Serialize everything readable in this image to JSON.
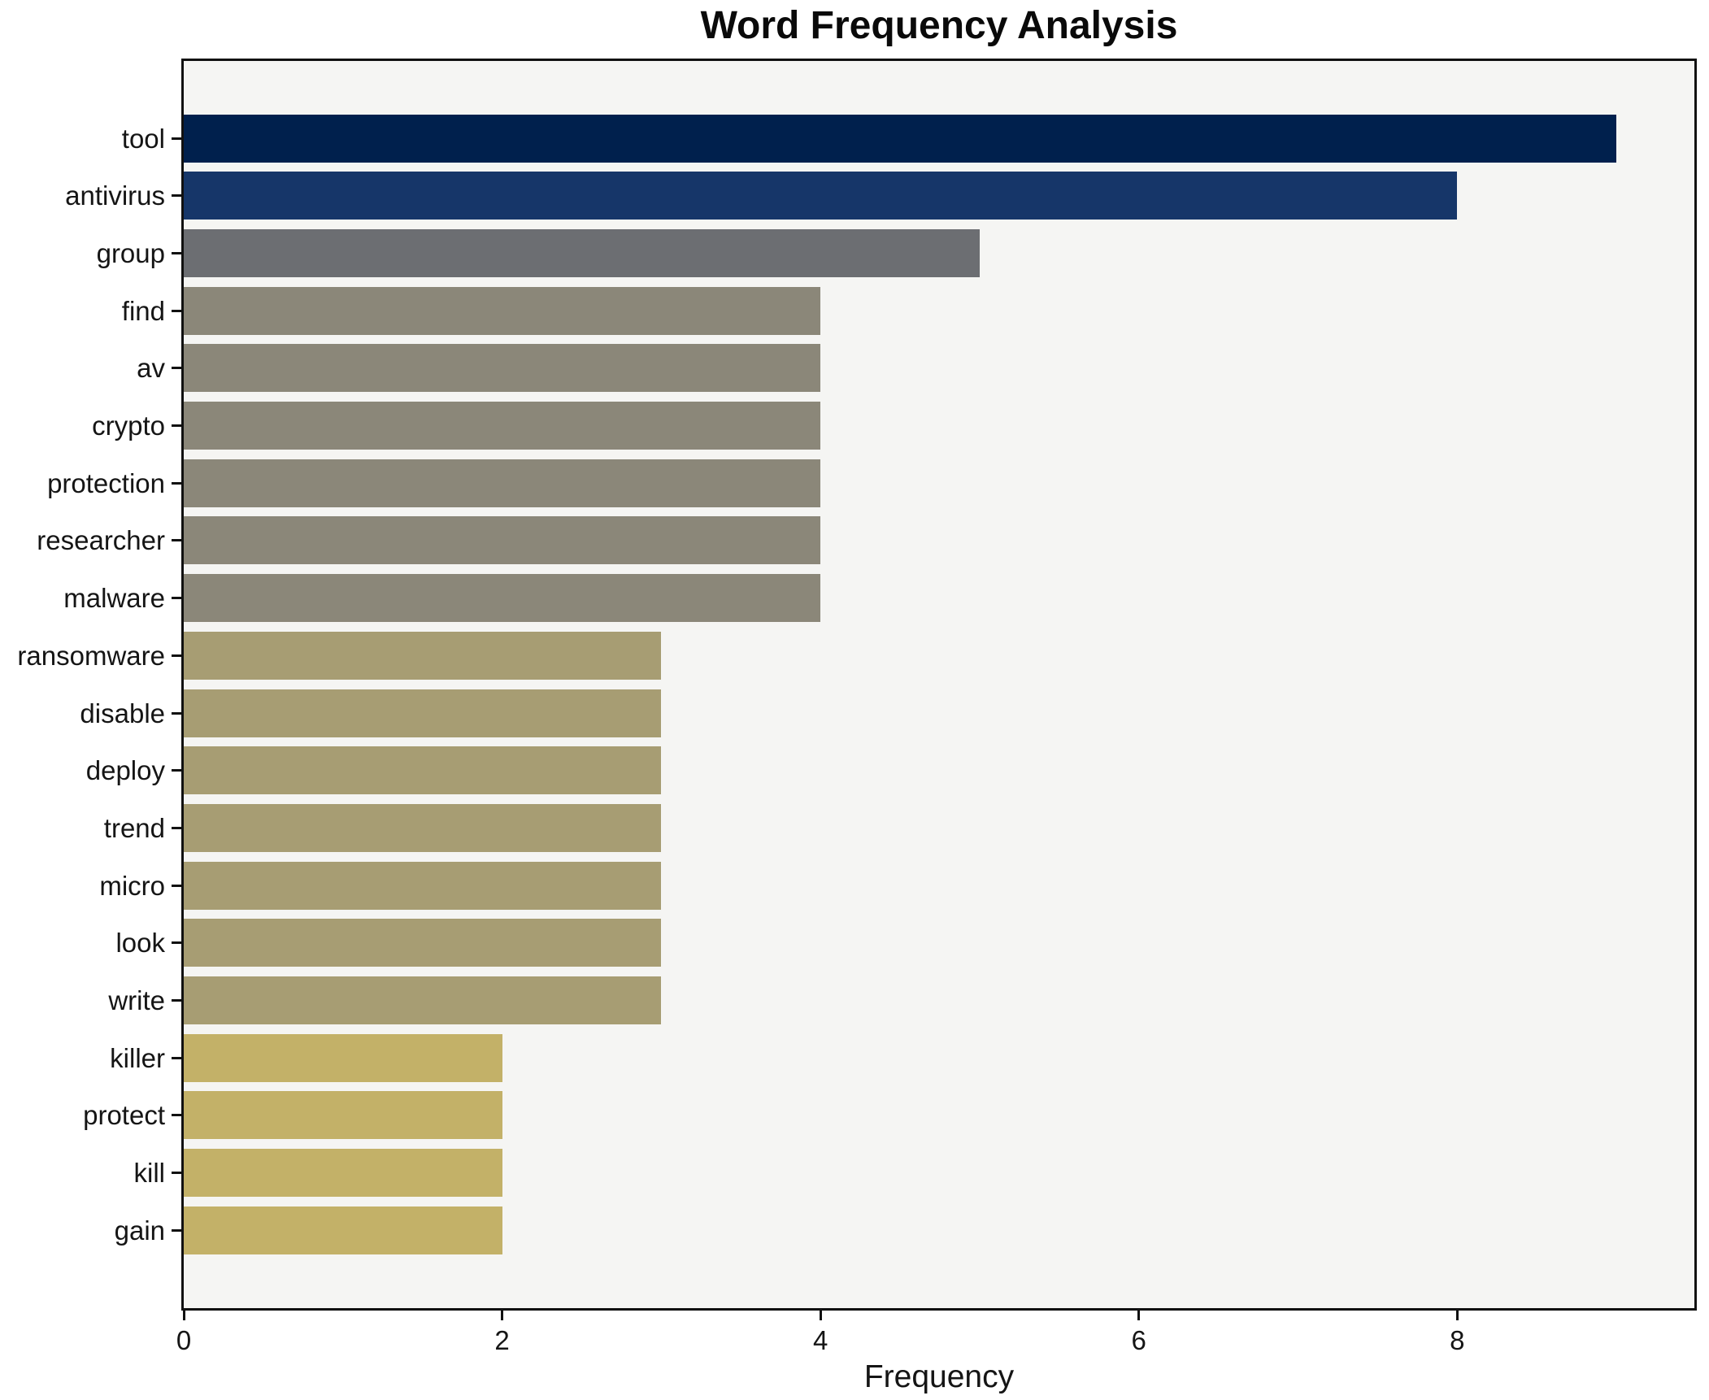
{
  "chart_data": {
    "type": "bar",
    "orientation": "horizontal",
    "title": "Word Frequency Analysis",
    "xlabel": "Frequency",
    "ylabel": "",
    "categories": [
      "tool",
      "antivirus",
      "group",
      "find",
      "av",
      "crypto",
      "protection",
      "researcher",
      "malware",
      "ransomware",
      "disable",
      "deploy",
      "trend",
      "micro",
      "look",
      "write",
      "killer",
      "protect",
      "kill",
      "gain"
    ],
    "values": [
      9,
      8,
      5,
      4,
      4,
      4,
      4,
      4,
      4,
      3,
      3,
      3,
      3,
      3,
      3,
      3,
      2,
      2,
      2,
      2
    ],
    "bar_colors": [
      "#00204d",
      "#163669",
      "#6c6e72",
      "#8b8779",
      "#8b8779",
      "#8b8779",
      "#8b8779",
      "#8b8779",
      "#8b8779",
      "#a79d73",
      "#a79d73",
      "#a79d73",
      "#a79d73",
      "#a79d73",
      "#a79d73",
      "#a79d73",
      "#c3b168",
      "#c3b168",
      "#c3b168",
      "#c3b168"
    ],
    "xlim": [
      0,
      9.49
    ],
    "xticks": [
      0,
      2,
      4,
      6,
      8
    ],
    "grid": false,
    "legend": "none",
    "plot_background": "#f5f5f3",
    "spine_color": "#111111",
    "text_color": "#151515"
  }
}
